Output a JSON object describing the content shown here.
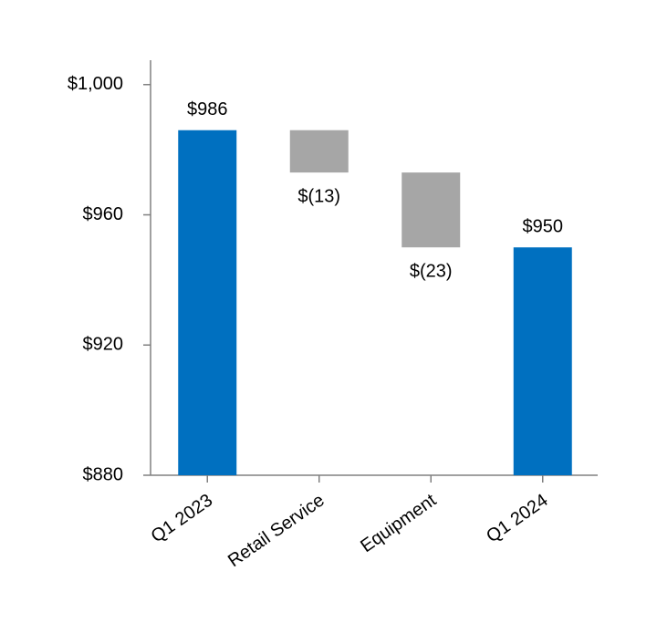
{
  "chart_data": {
    "type": "waterfall",
    "categories": [
      "Q1 2023",
      "Retail Service",
      "Equipment",
      "Q1 2024"
    ],
    "values": [
      986,
      -13,
      -23,
      950
    ],
    "value_labels": [
      "$986",
      "$(13)",
      "$(23)",
      "$950"
    ],
    "is_total": [
      true,
      false,
      false,
      true
    ],
    "total_color": "#0070c0",
    "change_color": "#a6a6a6",
    "ylim": [
      880,
      1007.5
    ],
    "yticks": [
      {
        "value": 880,
        "label": "$880"
      },
      {
        "value": 920,
        "label": "$920"
      },
      {
        "value": 960,
        "label": "$960"
      },
      {
        "value": 1000,
        "label": "$1,000"
      }
    ],
    "grid": false
  }
}
